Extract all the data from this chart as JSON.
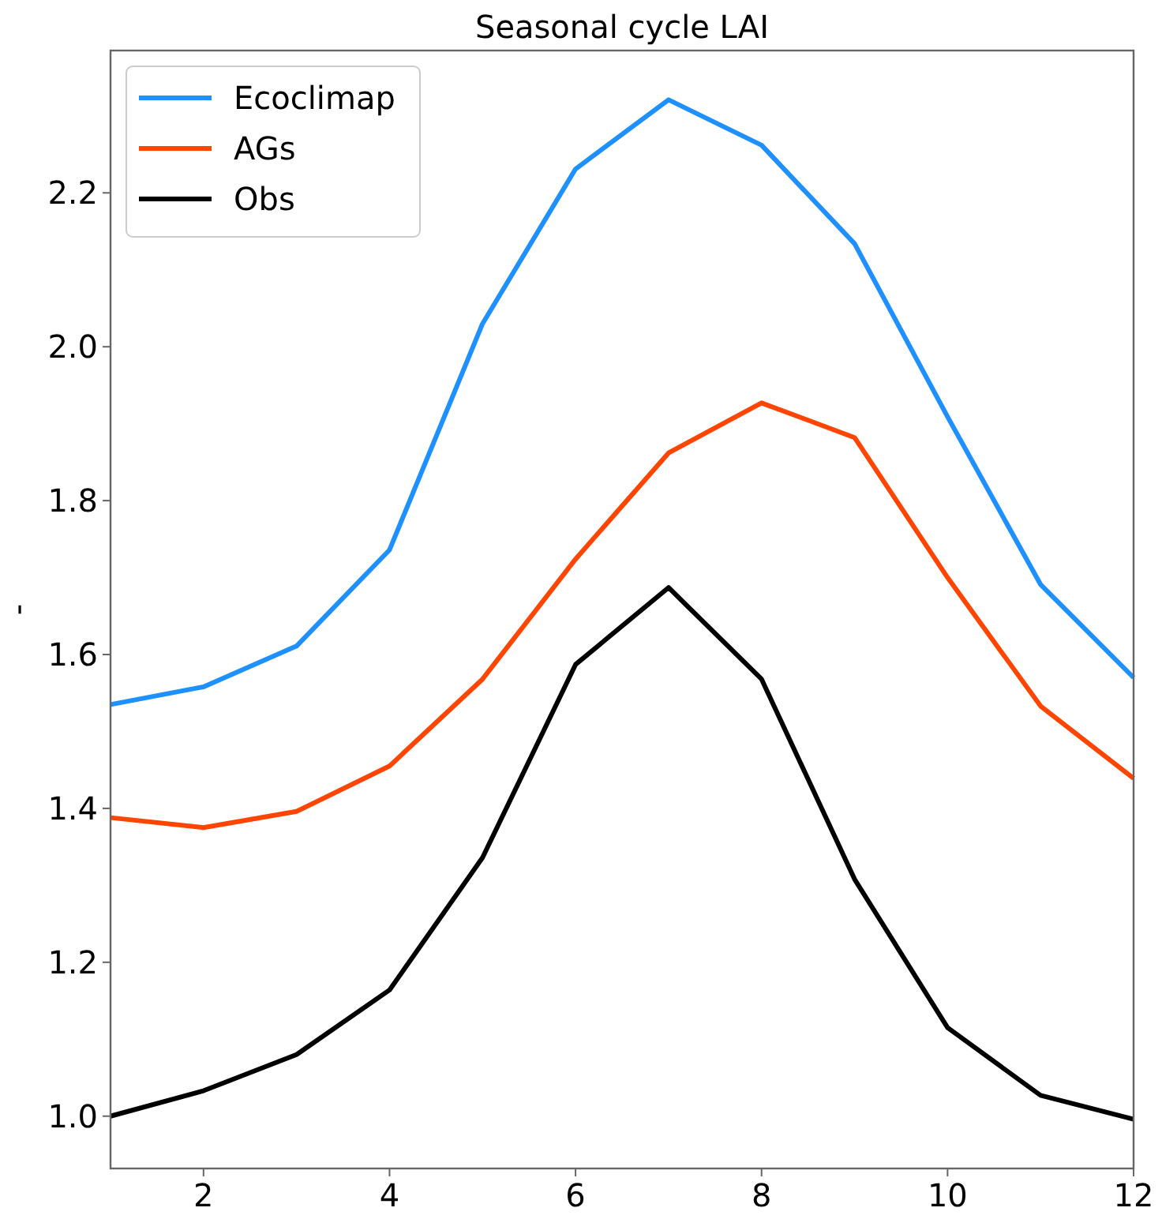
{
  "chart_data": {
    "type": "line",
    "title": "Seasonal cycle LAI",
    "ylabel": "-",
    "x": [
      1,
      2,
      3,
      4,
      5,
      6,
      7,
      8,
      9,
      10,
      11,
      12
    ],
    "series": [
      {
        "name": "Ecoclimap",
        "color": "#1e90ff",
        "values": [
          1.535,
          1.558,
          1.611,
          1.736,
          2.03,
          2.231,
          2.321,
          2.262,
          2.134,
          1.909,
          1.691,
          1.57
        ]
      },
      {
        "name": "AGs",
        "color": "#ff4500",
        "values": [
          1.388,
          1.375,
          1.396,
          1.455,
          1.568,
          1.724,
          1.862,
          1.927,
          1.882,
          1.7,
          1.533,
          1.439
        ]
      },
      {
        "name": "Obs",
        "color": "#000000",
        "values": [
          1.0,
          1.033,
          1.08,
          1.164,
          1.336,
          1.587,
          1.687,
          1.568,
          1.308,
          1.115,
          1.027,
          0.996
        ]
      }
    ],
    "xlim": [
      1,
      12
    ],
    "xticks": [
      2,
      4,
      6,
      8,
      10,
      12
    ],
    "ylim": [
      0.932,
      2.385
    ],
    "yticks": [
      {
        "value": 1,
        "label": "1.0"
      },
      {
        "value": 1.2,
        "label": "1.2"
      },
      1.4,
      1.6,
      1.8,
      {
        "value": 2.0,
        "label": "2.0"
      },
      2.2
    ],
    "legend": "top left",
    "grid": false,
    "line_style": "solid",
    "marker": "none"
  }
}
